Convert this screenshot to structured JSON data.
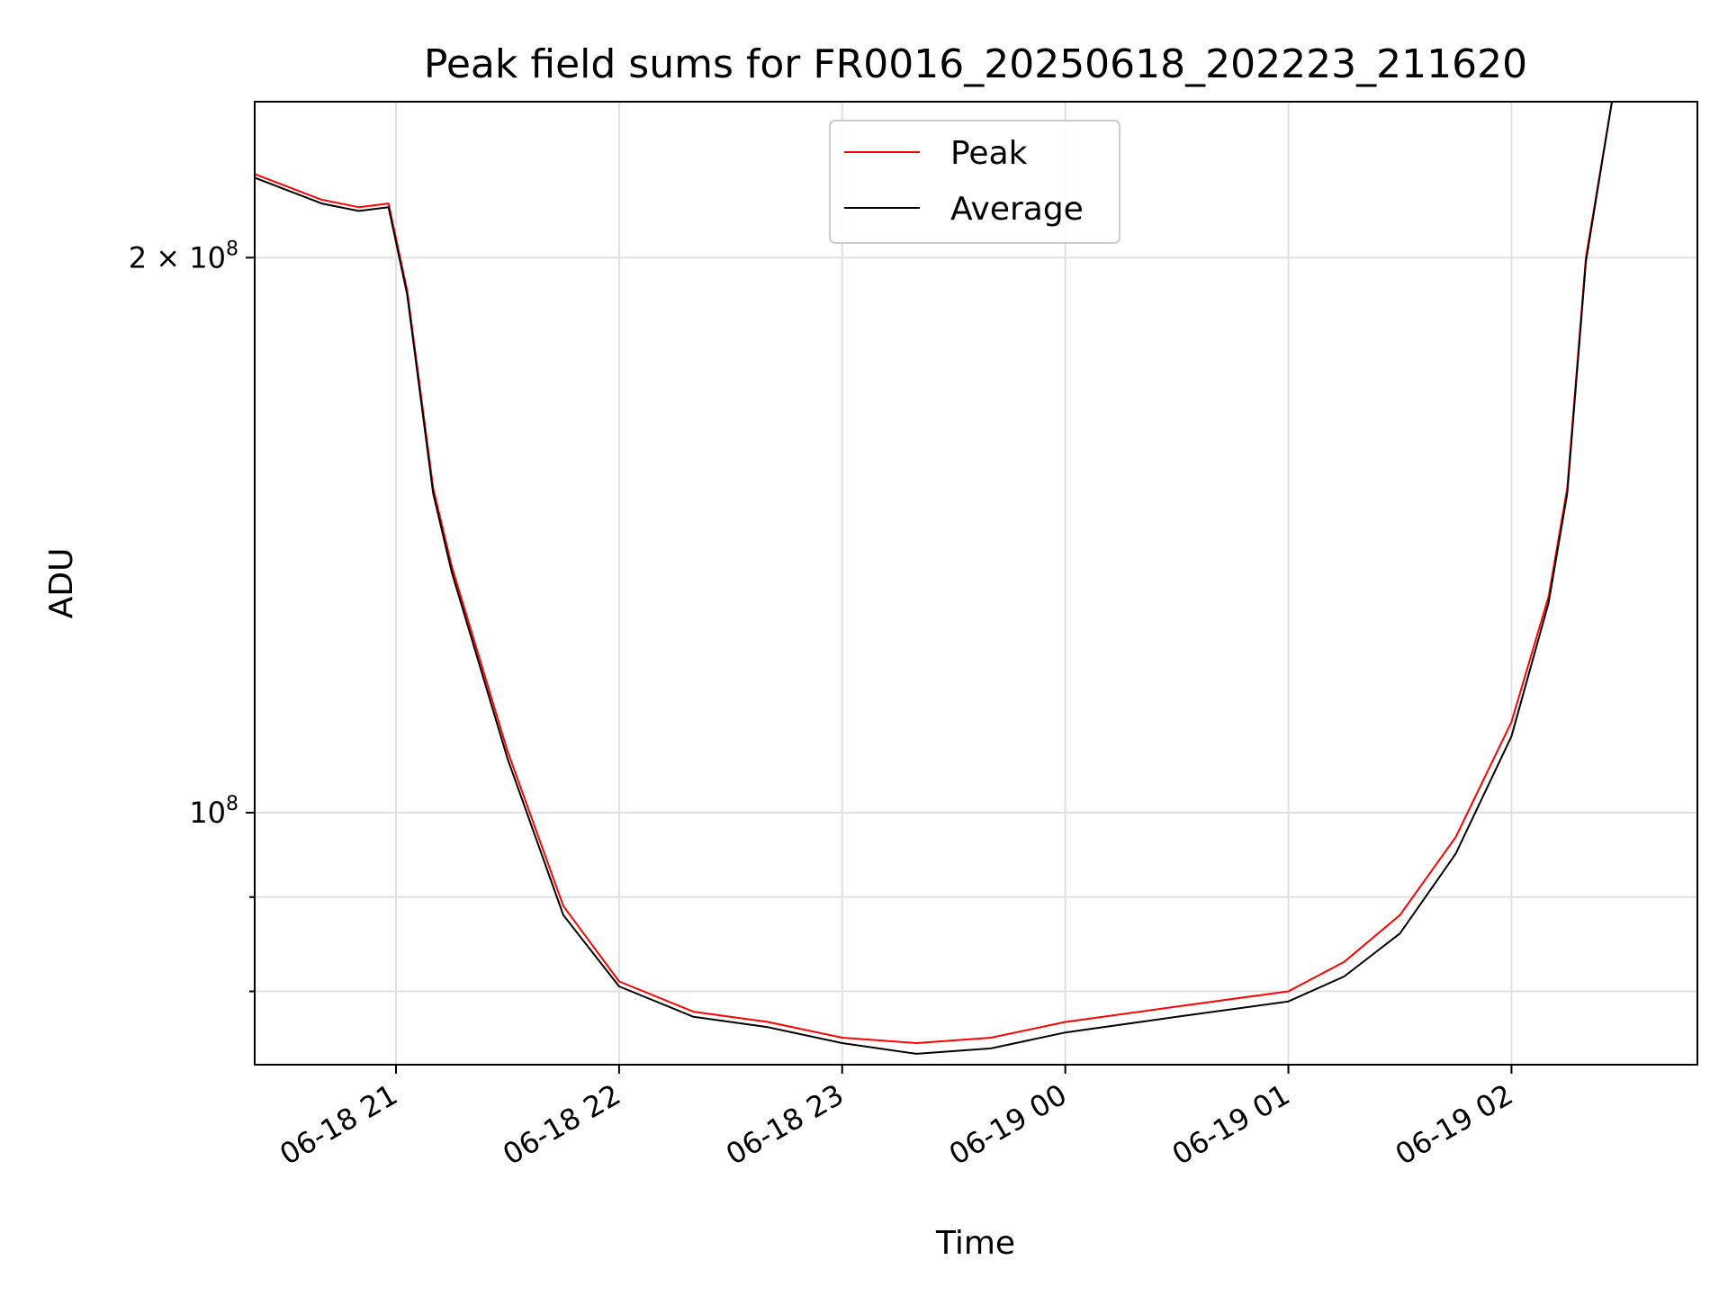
{
  "chart_data": {
    "type": "line",
    "title": "Peak field sums for FR0016_20250618_202223_211620",
    "xlabel": "Time",
    "ylabel": "ADU",
    "yscale": "log",
    "ylim": [
      73000000,
      243000000
    ],
    "xlim": [
      "2025-06-18 20:22",
      "2025-06-19 02:50"
    ],
    "x_ticks": [
      {
        "t": "2025-06-18 21:00",
        "label": "06-18 21"
      },
      {
        "t": "2025-06-18 22:00",
        "label": "06-18 22"
      },
      {
        "t": "2025-06-18 23:00",
        "label": "06-18 23"
      },
      {
        "t": "2025-06-19 00:00",
        "label": "06-19 00"
      },
      {
        "t": "2025-06-19 01:00",
        "label": "06-19 01"
      },
      {
        "t": "2025-06-19 02:00",
        "label": "06-19 02"
      }
    ],
    "y_major_ticks": [
      {
        "v": 200000000,
        "mant": "2 × 10",
        "exp": "8"
      },
      {
        "v": 100000000,
        "mant": "10",
        "exp": "8"
      }
    ],
    "y_minor_ticks": [
      90000000,
      80000000
    ],
    "grid": true,
    "legend_position": "upper center",
    "series": [
      {
        "name": "Peak",
        "color": "#ff0000",
        "x": [
          "2025-06-18 20:22",
          "2025-06-18 20:40",
          "2025-06-18 20:50",
          "2025-06-18 20:58",
          "2025-06-18 21:03",
          "2025-06-18 21:10",
          "2025-06-18 21:15",
          "2025-06-18 21:30",
          "2025-06-18 21:45",
          "2025-06-18 22:00",
          "2025-06-18 22:20",
          "2025-06-18 22:40",
          "2025-06-18 23:00",
          "2025-06-18 23:20",
          "2025-06-18 23:40",
          "2025-06-19 00:00",
          "2025-06-19 00:30",
          "2025-06-19 01:00",
          "2025-06-19 01:15",
          "2025-06-19 01:30",
          "2025-06-19 01:45",
          "2025-06-19 02:00",
          "2025-06-19 02:10",
          "2025-06-19 02:15",
          "2025-06-19 02:20",
          "2025-06-19 02:27"
        ],
        "values": [
          222000000,
          215000000,
          213000000,
          214000000,
          192000000,
          150000000,
          136000000,
          108000000,
          89000000,
          81000000,
          78000000,
          77000000,
          75500000,
          75000000,
          75500000,
          77000000,
          78500000,
          80000000,
          83000000,
          88000000,
          97000000,
          112000000,
          131000000,
          150000000,
          200000000,
          243000000
        ]
      },
      {
        "name": "Average",
        "color": "#000000",
        "x": [
          "2025-06-18 20:22",
          "2025-06-18 20:40",
          "2025-06-18 20:50",
          "2025-06-18 20:58",
          "2025-06-18 21:03",
          "2025-06-18 21:10",
          "2025-06-18 21:15",
          "2025-06-18 21:30",
          "2025-06-18 21:45",
          "2025-06-18 22:00",
          "2025-06-18 22:20",
          "2025-06-18 22:40",
          "2025-06-18 23:00",
          "2025-06-18 23:20",
          "2025-06-18 23:40",
          "2025-06-19 00:00",
          "2025-06-19 00:30",
          "2025-06-19 01:00",
          "2025-06-19 01:15",
          "2025-06-19 01:30",
          "2025-06-19 01:45",
          "2025-06-19 02:00",
          "2025-06-19 02:10",
          "2025-06-19 02:15",
          "2025-06-19 02:20",
          "2025-06-19 02:27"
        ],
        "values": [
          221000000,
          214000000,
          212000000,
          213000000,
          191000000,
          149000000,
          135000000,
          107000000,
          88000000,
          80500000,
          77500000,
          76500000,
          75000000,
          74000000,
          74500000,
          76000000,
          77500000,
          79000000,
          81500000,
          86000000,
          95000000,
          110000000,
          130000000,
          149000000,
          199000000,
          243000000
        ]
      }
    ]
  }
}
